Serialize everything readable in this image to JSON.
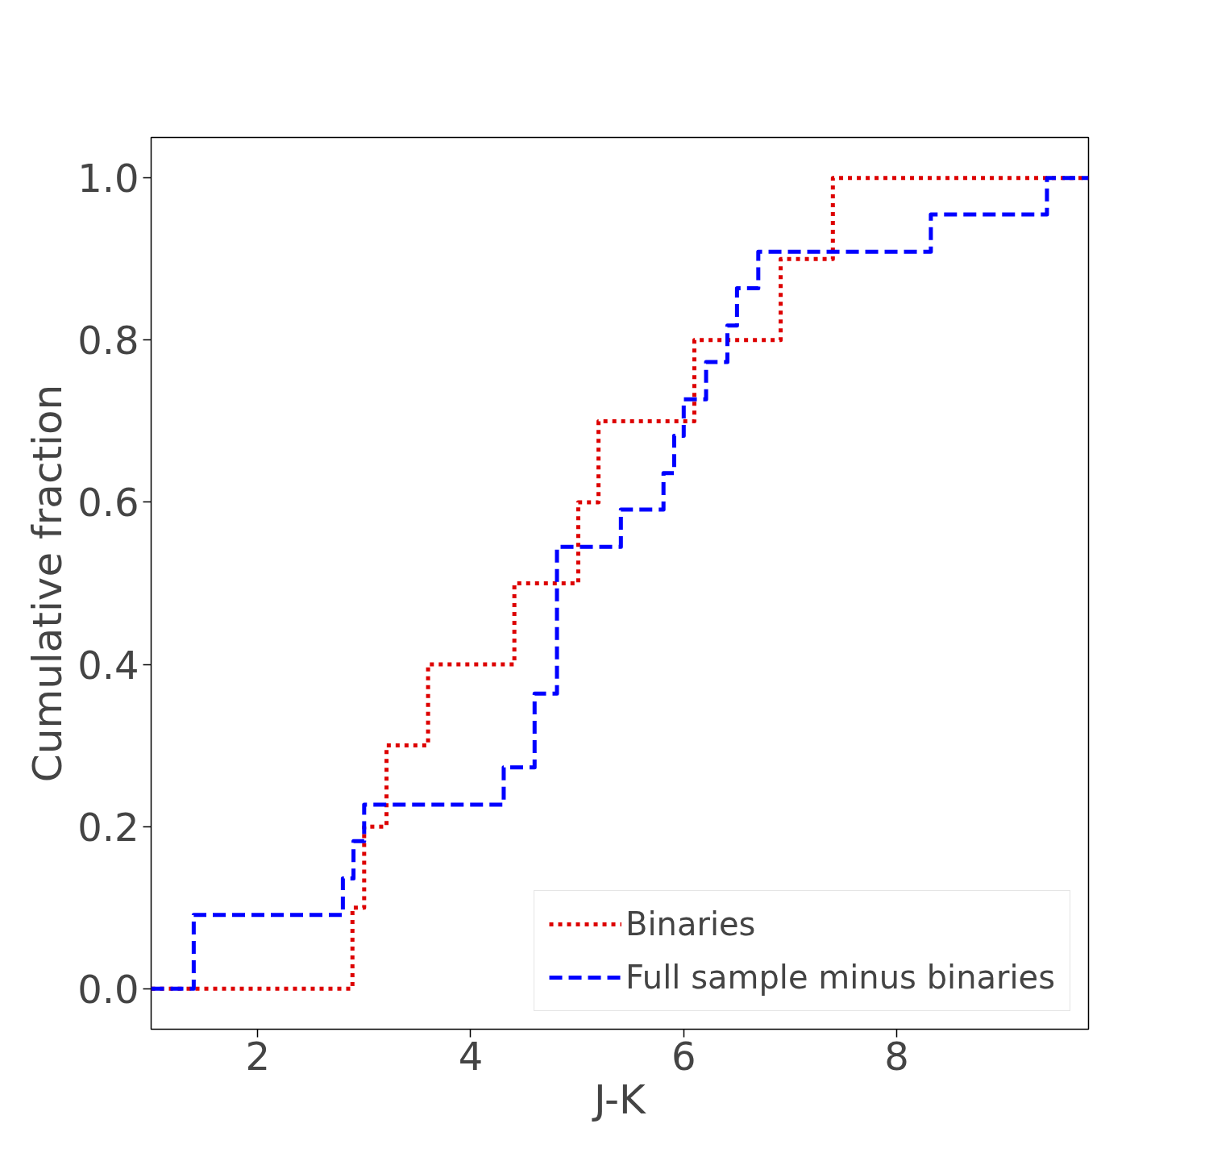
{
  "chart_data": {
    "type": "step",
    "xlabel": "J-K",
    "ylabel": "Cumulative fraction",
    "xlim": [
      1.0,
      9.8
    ],
    "ylim": [
      -0.05,
      1.05
    ],
    "xticks": [
      2,
      4,
      6,
      8
    ],
    "yticks": [
      {
        "value": 0,
        "label": "0.0"
      },
      {
        "value": 0.2,
        "label": "0.2"
      },
      {
        "value": 0.4,
        "label": "0.4"
      },
      {
        "value": 0.6,
        "label": "0.6"
      },
      {
        "value": 0.8,
        "label": "0.8"
      },
      {
        "value": 1,
        "label": "1.0"
      }
    ],
    "grid": false,
    "legend": "bottom right",
    "series": [
      {
        "name": "Binaries",
        "color": "#dd0000",
        "line_style": "dotted",
        "x": [
          1.0,
          2.89,
          3.0,
          3.21,
          3.6,
          4.41,
          5.01,
          5.2,
          6.1,
          6.91,
          7.4,
          9.8
        ],
        "values": [
          0,
          0.1,
          0.2,
          0.3,
          0.4,
          0.5,
          0.6,
          0.7,
          0.8,
          0.9,
          1.0,
          1.0
        ]
      },
      {
        "name": "Full sample minus binaries",
        "color": "#0000ff",
        "line_style": "dashed",
        "x": [
          1.0,
          1.4,
          2.8,
          2.9,
          3.0,
          4.31,
          4.6,
          4.81,
          5.41,
          5.81,
          5.91,
          6.0,
          6.21,
          6.41,
          6.5,
          6.7,
          8.32,
          9.41,
          9.8
        ],
        "values": [
          0,
          0.091,
          0.136,
          0.182,
          0.227,
          0.273,
          0.364,
          0.545,
          0.591,
          0.636,
          0.682,
          0.727,
          0.773,
          0.818,
          0.864,
          0.909,
          0.955,
          1.0,
          1.0
        ]
      }
    ]
  }
}
